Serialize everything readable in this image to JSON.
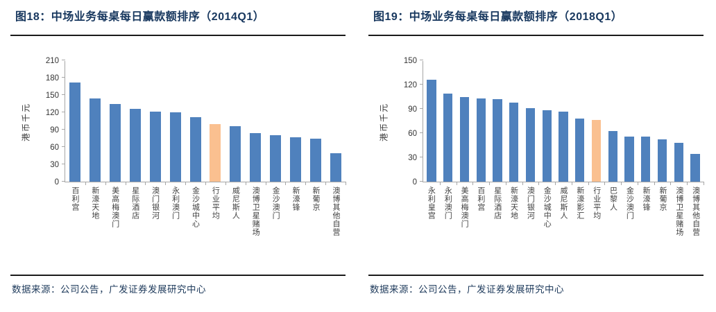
{
  "panels": [
    {
      "title": "图18：中场业务每桌每日赢款额排序（2014Q1）",
      "source": "数据来源：公司公告，广发证券发展研究中心"
    },
    {
      "title": "图19：中场业务每桌每日赢款额排序（2018Q1）",
      "source": "数据来源：公司公告，广发证券发展研究中心"
    }
  ],
  "colors": {
    "bar_blue": "#4F81BD",
    "bar_highlight": "#FAC090",
    "heading_navy": "#17375E",
    "divider_black": "#1A1A1A",
    "axis_gray": "#A6A6A6",
    "tick_text": "#333333"
  },
  "chart_data": [
    {
      "type": "bar",
      "title": "图18：中场业务每桌每日赢款额排序（2014Q1）",
      "ylabel": "港币千元",
      "xlabel": "",
      "ylim": [
        0,
        210
      ],
      "yticks": [
        0,
        30,
        60,
        90,
        120,
        150,
        180,
        210
      ],
      "grid": false,
      "legend_position": "none",
      "categories": [
        "百利宫",
        "新濠天地",
        "美高梅澳门",
        "星际酒店",
        "澳门银河",
        "永利澳门",
        "金沙城中心",
        "行业平均",
        "威尼斯人",
        "澳博卫星赌场",
        "金沙澳门",
        "新濠锋",
        "新葡京",
        "澳博其他自营"
      ],
      "values": [
        172,
        144,
        134,
        126,
        121,
        120,
        112,
        100,
        96,
        84,
        81,
        77,
        75,
        49
      ],
      "highlight_label": "行业平均",
      "highlight_index": 7
    },
    {
      "type": "bar",
      "title": "图19：中场业务每桌每日赢款额排序（2018Q1）",
      "ylabel": "港币千元",
      "xlabel": "",
      "ylim": [
        0,
        150
      ],
      "yticks": [
        0,
        30,
        60,
        90,
        120,
        150
      ],
      "grid": false,
      "legend_position": "none",
      "categories": [
        "永利皇宫",
        "永利澳门",
        "美高梅澳门",
        "百利宫",
        "星际酒店",
        "新濠天地",
        "澳门银河",
        "金沙城中心",
        "威尼斯人",
        "新濠影汇",
        "行业平均",
        "巴黎人",
        "金沙澳门",
        "新濠锋",
        "新葡京",
        "澳博卫星赌场",
        "澳博其他自营"
      ],
      "values": [
        126,
        109,
        105,
        103,
        102,
        98,
        91,
        88,
        87,
        78,
        76,
        63,
        56,
        56,
        52,
        48,
        34
      ],
      "highlight_label": "行业平均",
      "highlight_index": 10
    }
  ]
}
